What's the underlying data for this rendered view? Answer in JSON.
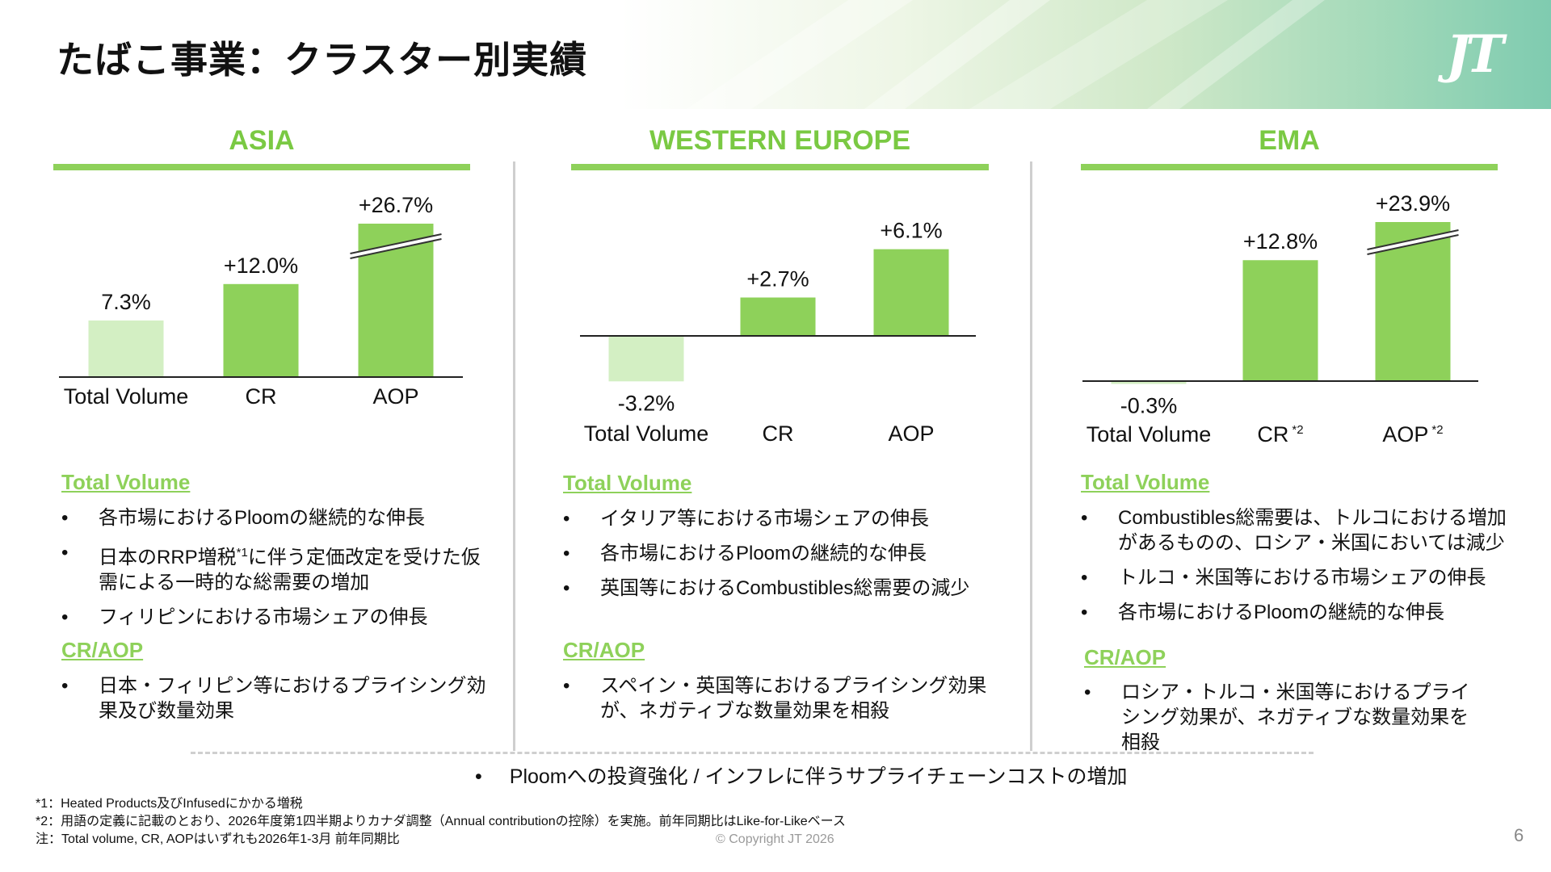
{
  "header": {
    "title": "たばこ事業：クラスター別実績",
    "logo": "JT"
  },
  "colors": {
    "accent": "#8ed15a",
    "accent_light": "#d3efc3",
    "title_green": "#7ac943"
  },
  "chart_data": [
    {
      "type": "bar",
      "title": "ASIA",
      "categories": [
        "Total Volume",
        "CR",
        "AOP"
      ],
      "values": [
        7.3,
        12.0,
        26.7
      ],
      "value_labels": [
        "7.3%",
        "+12.0%",
        "+26.7%"
      ],
      "broken_axis": [
        false,
        false,
        true
      ],
      "category_notes": [
        "",
        "",
        ""
      ]
    },
    {
      "type": "bar",
      "title": "WESTERN EUROPE",
      "categories": [
        "Total Volume",
        "CR",
        "AOP"
      ],
      "values": [
        -3.2,
        2.7,
        6.1
      ],
      "value_labels": [
        "-3.2%",
        "+2.7%",
        "+6.1%"
      ],
      "broken_axis": [
        false,
        false,
        false
      ],
      "category_notes": [
        "",
        "",
        ""
      ]
    },
    {
      "type": "bar",
      "title": "EMA",
      "categories": [
        "Total Volume",
        "CR",
        "AOP"
      ],
      "values": [
        -0.3,
        12.8,
        23.9
      ],
      "value_labels": [
        "-0.3%",
        "+12.8%",
        "+23.9%"
      ],
      "broken_axis": [
        false,
        false,
        true
      ],
      "category_notes": [
        "",
        "*2",
        "*2"
      ]
    }
  ],
  "sections": [
    {
      "vol_head": "Total Volume",
      "vol_items": [
        {
          "text": "各市場におけるPloomの継続的な伸長",
          "sup": "",
          "rest": ""
        },
        {
          "text": "日本のRRP増税",
          "sup": "*1",
          "rest": "に伴う定価改定を受けた仮需による一時的な総需要の増加"
        },
        {
          "text": "フィリピンにおける市場シェアの伸長",
          "sup": "",
          "rest": ""
        }
      ],
      "cr_head": "CR/AOP",
      "cr_items": [
        {
          "text": "日本・フィリピン等におけるプライシング効果及び数量効果",
          "sup": "",
          "rest": ""
        }
      ]
    },
    {
      "vol_head": "Total Volume",
      "vol_items": [
        {
          "text": "イタリア等における市場シェアの伸長",
          "sup": "",
          "rest": ""
        },
        {
          "text": "各市場におけるPloomの継続的な伸長",
          "sup": "",
          "rest": ""
        },
        {
          "text": "英国等におけるCombustibles総需要の減少",
          "sup": "",
          "rest": ""
        }
      ],
      "cr_head": "CR/AOP",
      "cr_items": [
        {
          "text": "スペイン・英国等におけるプライシング効果が、ネガティブな数量効果を相殺",
          "sup": "",
          "rest": ""
        }
      ]
    },
    {
      "vol_head": "Total Volume",
      "vol_items": [
        {
          "text": "Combustibles総需要は、トルコにおける増加があるものの、ロシア・米国においては減少",
          "sup": "",
          "rest": ""
        },
        {
          "text": "トルコ・米国等における市場シェアの伸長",
          "sup": "",
          "rest": ""
        },
        {
          "text": "各市場におけるPloomの継続的な伸長",
          "sup": "",
          "rest": ""
        }
      ],
      "cr_head": "CR/AOP",
      "cr_items": [
        {
          "text": "ロシア・トルコ・米国等におけるプライシング効果が、ネガティブな数量効果を相殺",
          "sup": "",
          "rest": ""
        }
      ]
    }
  ],
  "bullet_char": "•",
  "common_note": "Ploomへの投資強化 / インフレに伴うサプライチェーンコストの増加",
  "footnotes": [
    "*1：Heated Products及びInfusedにかかる増税",
    "*2：用語の定義に記載のとおり、2026年度第1四半期よりカナダ調整（Annual contributionの控除）を実施。前年同期比はLike-for-Likeベース",
    " 注：Total volume, CR, AOPはいずれも2026年1-3月 前年同期比"
  ],
  "copyright": "© Copyright JT 2026",
  "page_number": "6"
}
